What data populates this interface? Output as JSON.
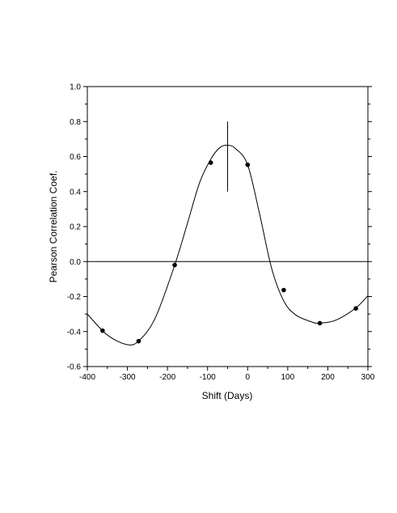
{
  "chart_data": {
    "type": "scatter",
    "title": "",
    "xlabel": "Shift (Days)",
    "ylabel": "Pearson Correlation Coef.",
    "xlim": [
      -400,
      300
    ],
    "ylim": [
      -0.6,
      1.0
    ],
    "xticks": [
      -400,
      -300,
      -200,
      -100,
      0,
      100,
      200,
      300
    ],
    "yticks": [
      -0.6,
      -0.4,
      -0.2,
      0.0,
      0.2,
      0.4,
      0.6,
      0.8,
      1.0
    ],
    "xtick_labels": [
      "-400",
      "-300",
      "-200",
      "-100",
      "0",
      "100",
      "200",
      "300"
    ],
    "ytick_labels": [
      "-0.6",
      "-0.4",
      "-0.2",
      "0.0",
      "0.2",
      "0.4",
      "0.6",
      "0.8",
      "1.0"
    ],
    "series": [
      {
        "kind": "points",
        "x": [
          -362,
          -272,
          -182,
          -92,
          0,
          90,
          180,
          270
        ],
        "y": [
          -0.395,
          -0.455,
          -0.02,
          0.565,
          0.553,
          -0.163,
          -0.352,
          -0.268
        ]
      },
      {
        "kind": "smooth-curve",
        "x": [
          -400,
          -350,
          -300,
          -270,
          -230,
          -182,
          -150,
          -120,
          -92,
          -70,
          -50,
          -30,
          0,
          30,
          60,
          90,
          120,
          160,
          180,
          220,
          270,
          300
        ],
        "y": [
          -0.3,
          -0.42,
          -0.475,
          -0.45,
          -0.32,
          -0.02,
          0.22,
          0.45,
          0.585,
          0.65,
          0.665,
          0.645,
          0.553,
          0.27,
          -0.04,
          -0.225,
          -0.305,
          -0.345,
          -0.352,
          -0.335,
          -0.265,
          -0.195
        ]
      }
    ],
    "reference_lines": [
      {
        "kind": "horizontal",
        "y": 0.0
      },
      {
        "kind": "vertical",
        "x": -50,
        "y_range": [
          0.4,
          0.8
        ]
      }
    ],
    "grid": false,
    "legend": "none"
  }
}
